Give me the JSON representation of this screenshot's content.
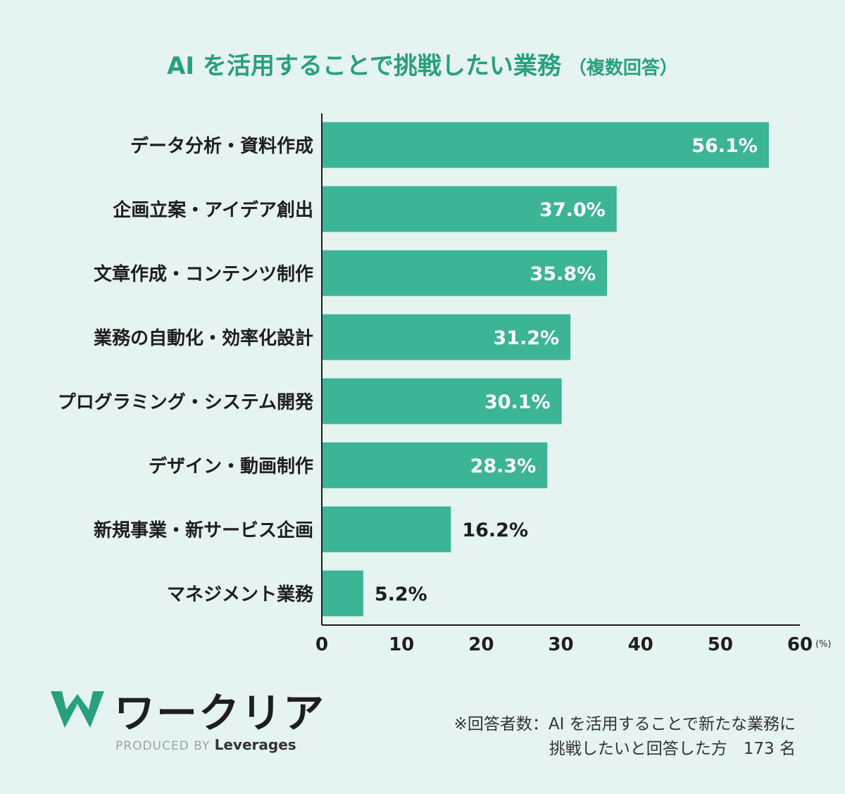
{
  "title": {
    "main": "AI を活用することで挑戦したい業務",
    "sub": "（複数回答）"
  },
  "colors": {
    "background": "#e5f3f1",
    "accent": "#27a07f",
    "bar": "#3cb496"
  },
  "chart_data": {
    "type": "bar",
    "orientation": "horizontal",
    "title": "AI を活用することで挑戦したい業務（複数回答）",
    "categories": [
      "データ分析・資料作成",
      "企画立案・アイデア創出",
      "文章作成・コンテンツ制作",
      "業務の自動化・効率化設計",
      "プログラミング・システム開発",
      "デザイン・動画制作",
      "新規事業・新サービス企画",
      "マネジメント業務"
    ],
    "values": [
      56.1,
      37.0,
      35.8,
      31.2,
      30.1,
      28.3,
      16.2,
      5.2
    ],
    "value_labels": [
      "56.1%",
      "37.0%",
      "35.8%",
      "31.2%",
      "30.1%",
      "28.3%",
      "16.2%",
      "5.2%"
    ],
    "xlim": [
      0,
      60
    ],
    "xticks": [
      "0",
      "10",
      "20",
      "30",
      "40",
      "50",
      "60"
    ],
    "x_unit": "(%)",
    "grid": false,
    "legend": "none"
  },
  "logo": {
    "name": "ワークリア",
    "produced_by": "PRODUCED BY",
    "company": "Leverages"
  },
  "footnote": {
    "line1": "※回答者数：AI を活用することで新たな業務に",
    "line2": "挑戦したいと回答した方　173 名"
  }
}
